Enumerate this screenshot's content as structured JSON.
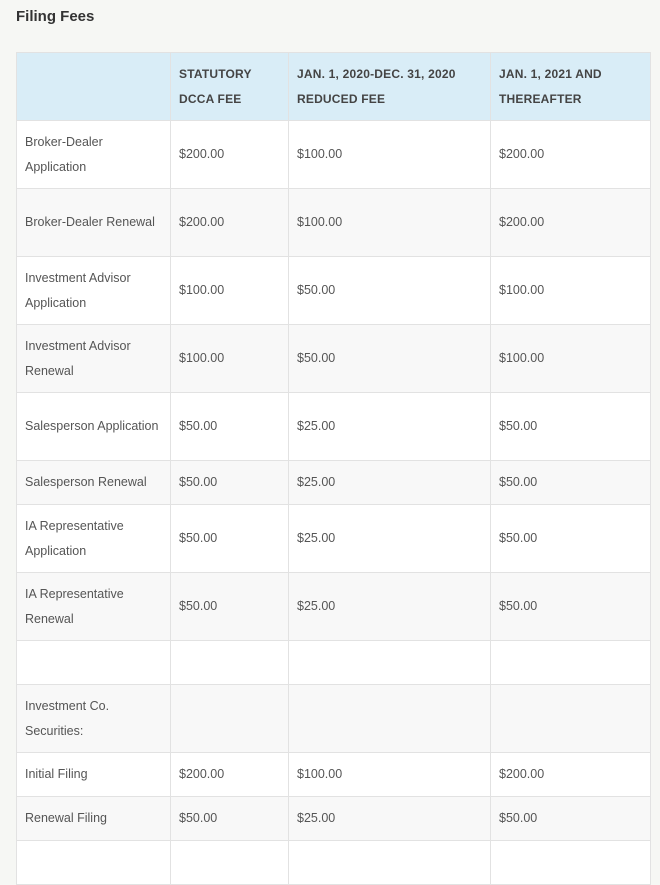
{
  "title": "Filing Fees",
  "headers": [
    "",
    "STATUTORY DCCA FEE",
    "JAN. 1, 2020-DEC. 31, 2020 REDUCED FEE",
    "JAN. 1, 2021 AND THEREAFTER"
  ],
  "rows": [
    {
      "label": "Broker-Dealer Application",
      "statutory": "$200.00",
      "reduced": "$100.00",
      "after": "$200.00"
    },
    {
      "label": "Broker-Dealer Renewal",
      "statutory": "$200.00",
      "reduced": "$100.00",
      "after": "$200.00"
    },
    {
      "label": "Investment Advisor Application",
      "statutory": "$100.00",
      "reduced": "$50.00",
      "after": "$100.00"
    },
    {
      "label": "Investment Advisor Renewal",
      "statutory": "$100.00",
      "reduced": "$50.00",
      "after": "$100.00"
    },
    {
      "label": "Salesperson Application",
      "statutory": "$50.00",
      "reduced": "$25.00",
      "after": "$50.00"
    },
    {
      "label": "Salesperson Renewal",
      "statutory": "$50.00",
      "reduced": "$25.00",
      "after": "$50.00"
    },
    {
      "label": "IA Representative Application",
      "statutory": "$50.00",
      "reduced": "$25.00",
      "after": "$50.00"
    },
    {
      "label": "IA Representative Renewal",
      "statutory": "$50.00",
      "reduced": "$25.00",
      "after": "$50.00"
    },
    {
      "label": "",
      "statutory": "",
      "reduced": "",
      "after": ""
    },
    {
      "label": "Investment Co. Securities:",
      "statutory": "",
      "reduced": "",
      "after": ""
    },
    {
      "label": "Initial Filing",
      "statutory": "$200.00",
      "reduced": "$100.00",
      "after": "$200.00"
    },
    {
      "label": "Renewal Filing",
      "statutory": "$50.00",
      "reduced": "$25.00",
      "after": "$50.00"
    },
    {
      "label": "",
      "statutory": "",
      "reduced": "",
      "after": ""
    }
  ],
  "colors": {
    "header_bg": "#d9edf7",
    "row_alt_bg": "#f8f8f8",
    "border": "#e2e2e2"
  }
}
